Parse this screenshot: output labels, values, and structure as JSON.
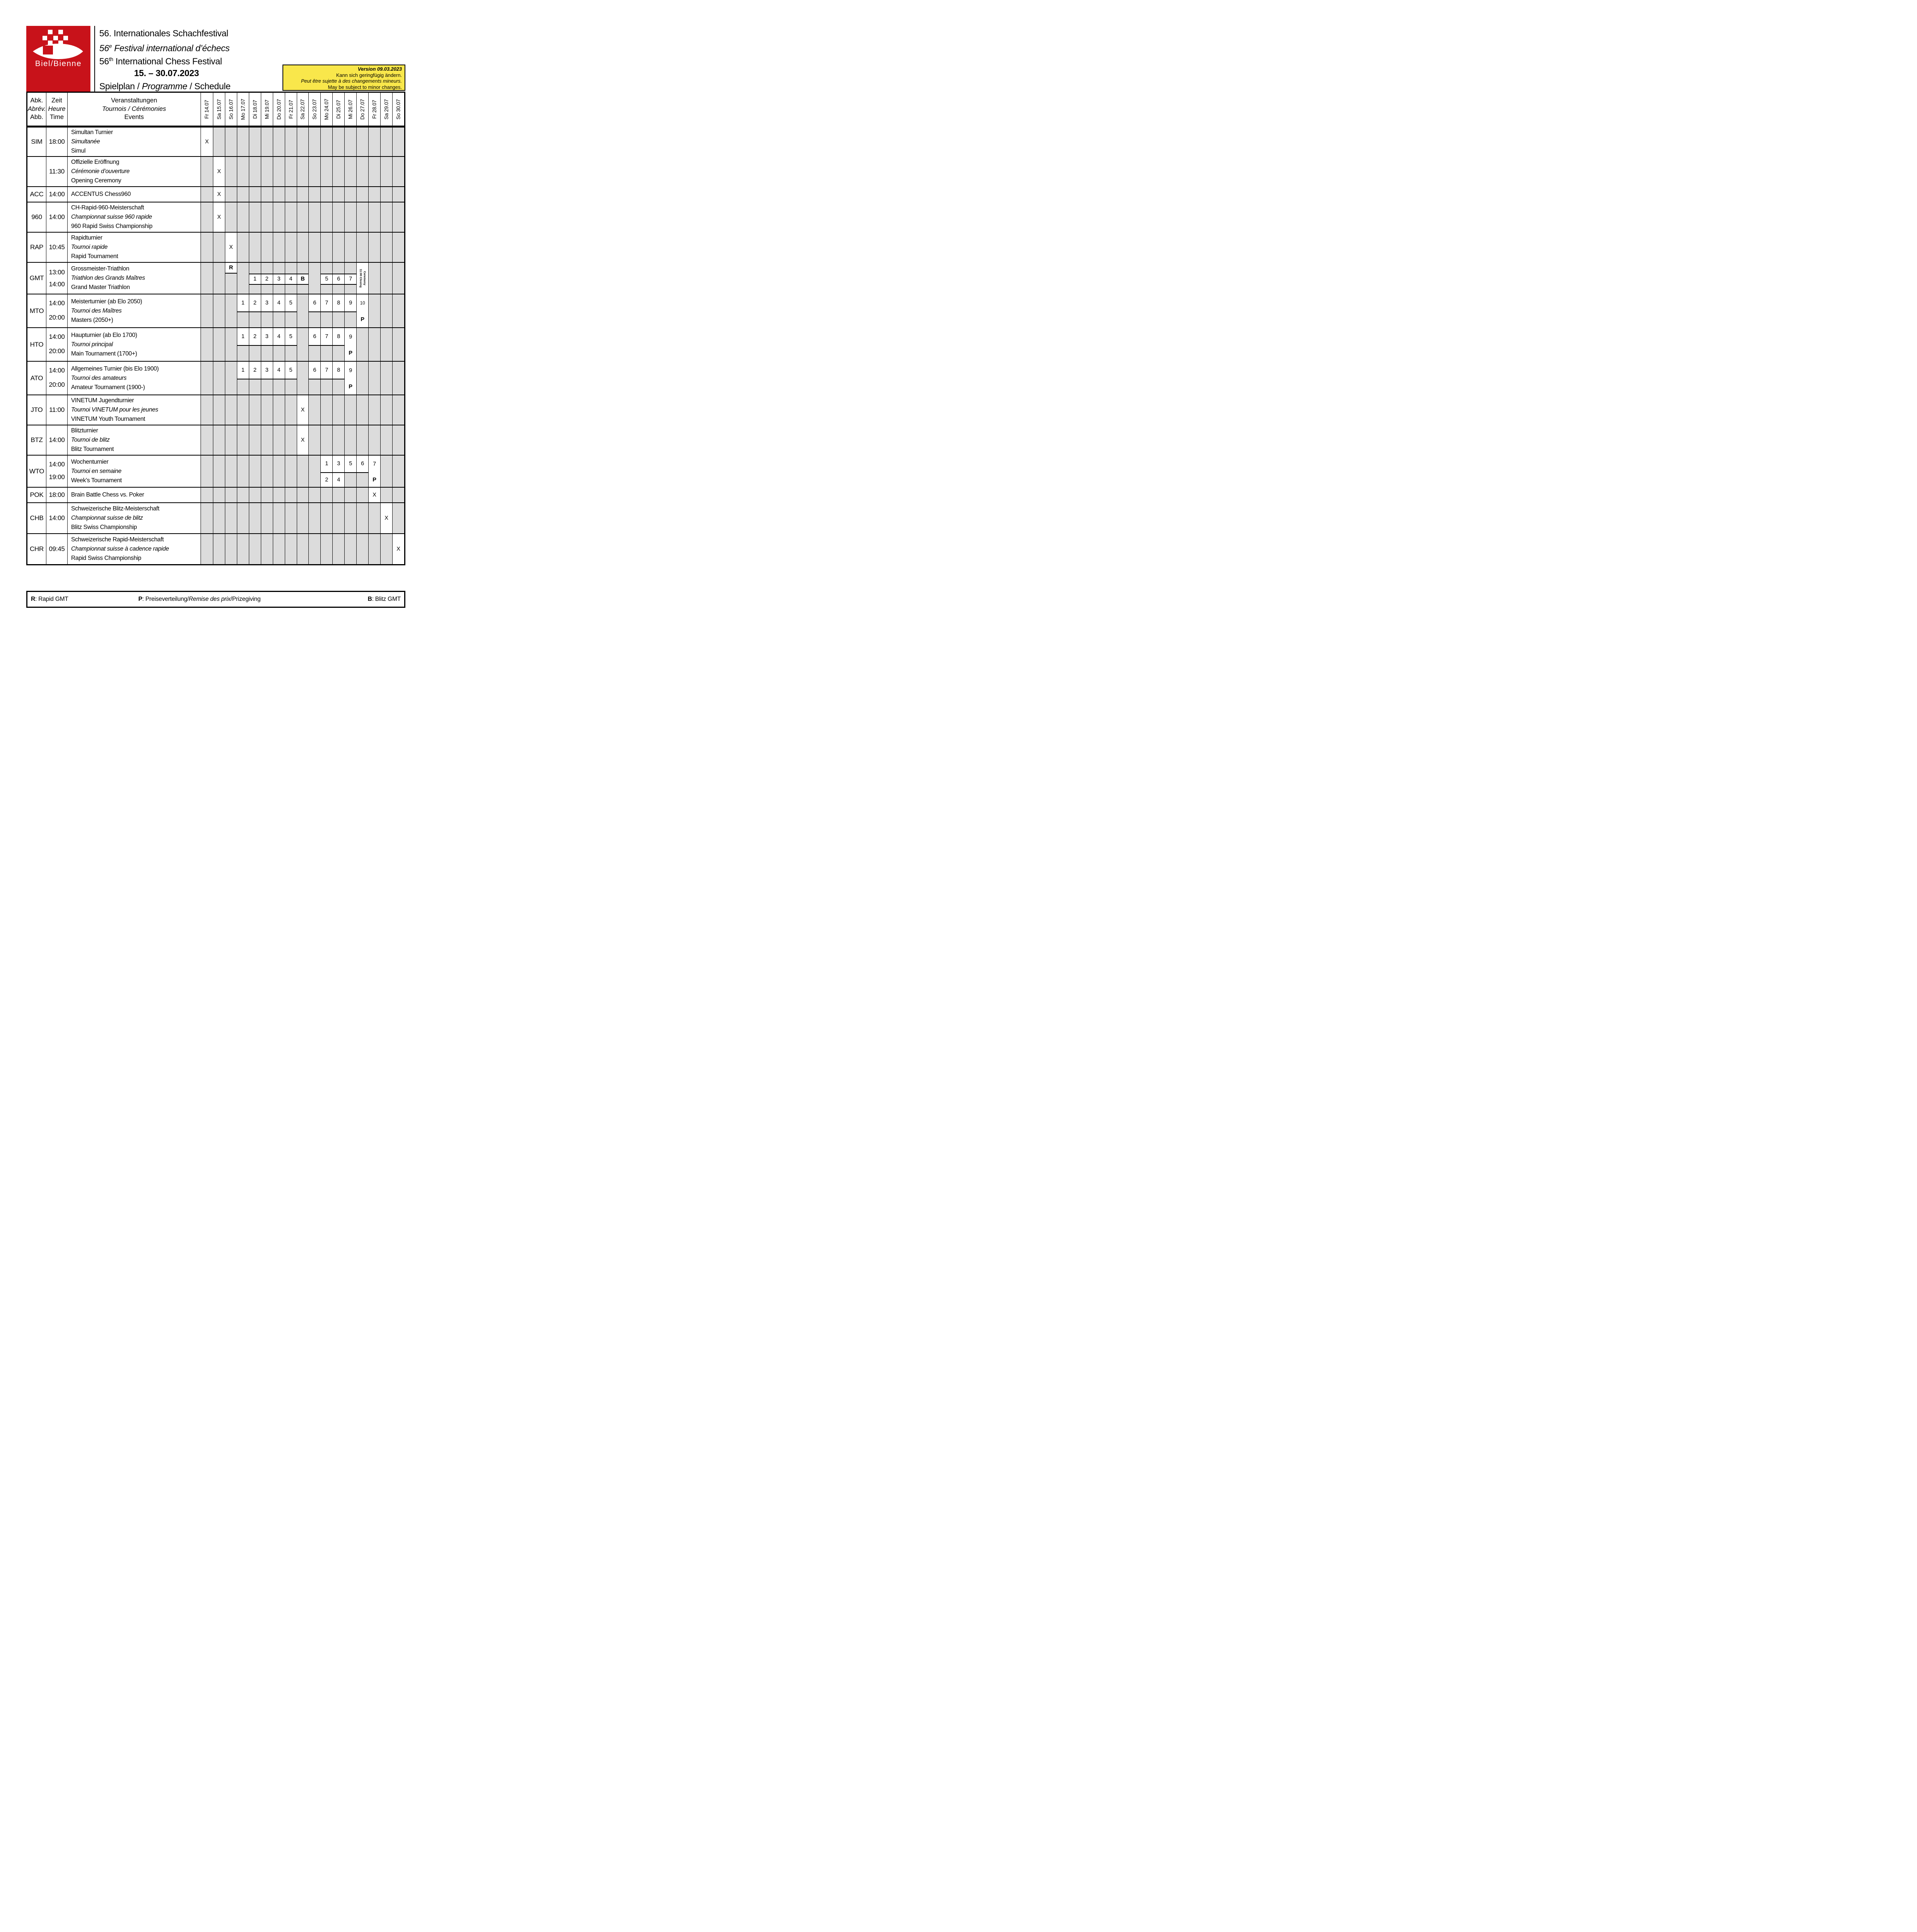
{
  "colors": {
    "red": "#C8121A",
    "yellow": "#F9E74B",
    "gray_cell": "#DCDCDC",
    "line": "#000000"
  },
  "logo": {
    "city": "Biel/Bienne"
  },
  "header": {
    "title_de": "56. Internationales Schachfestival",
    "title_fr_base": "56",
    "title_fr_sup": "e",
    "title_fr_rest": " Festival international d’échecs",
    "title_en_base": "56",
    "title_en_sup": "th",
    "title_en_rest": " International Chess Festival",
    "daterange": "15. – 30.07.2023",
    "plan_de": "Spielplan / ",
    "plan_fr": "Programme",
    "plan_en": " / Schedule",
    "version": {
      "l1": "Version 09.03.2023",
      "l2": "Kann sich geringfügig ändern.",
      "l3": "Peut être sujette à des changements mineurs.",
      "l4": "May be subject to minor changes."
    }
  },
  "table": {
    "corner": {
      "abbr": [
        [
          "Abk.",
          0
        ],
        [
          "Abrév.",
          1
        ],
        [
          "Abb.",
          0
        ]
      ],
      "time": [
        [
          "Zeit",
          0
        ],
        [
          "Heure",
          1
        ],
        [
          "Time",
          0
        ]
      ],
      "events": [
        [
          "Veranstaltungen",
          0
        ],
        [
          "Tournois / Cérémonies",
          1
        ],
        [
          "Events",
          0
        ]
      ]
    },
    "columns": [
      "Fr 14.07",
      "Sa 15.07",
      "So 16.07",
      "Mo 17.07",
      "Di 18.07",
      "Mi 19.07",
      "Do 20.07",
      "Fr 21.07",
      "Sa 22.07",
      "So 23.07",
      "Mo 24.07",
      "Di 25.07",
      "Mi 26.07",
      "Do 27.07",
      "Fr 28.07",
      "Sa 29.07",
      "So 30.07"
    ],
    "rows": [
      {
        "abbr": "SIM",
        "times": [
          "18:00"
        ],
        "tl": "one",
        "h": 76,
        "bands": [
          100
        ],
        "lines": [
          [
            "Simultan Turnier",
            0
          ],
          [
            "Simultanée",
            1
          ],
          [
            "Simul",
            0
          ]
        ],
        "marks": [
          {
            "c": 0,
            "b": 0,
            "t": "X"
          }
        ]
      },
      {
        "abbr": "",
        "times": [
          "11:30"
        ],
        "tl": "one",
        "h": 78,
        "bands": [
          100
        ],
        "lines": [
          [
            "Offizielle Eröffnung",
            0
          ],
          [
            "Cérémonie d’ouverture",
            1
          ],
          [
            "Opening Ceremony",
            0
          ]
        ],
        "marks": [
          {
            "c": 1,
            "b": 0,
            "t": "X"
          }
        ]
      },
      {
        "abbr": "ACC",
        "times": [
          "14:00"
        ],
        "tl": "one",
        "h": 40,
        "bands": [
          100
        ],
        "lines": [
          [
            "ACCENTUS Chess960",
            0
          ]
        ],
        "marks": [
          {
            "c": 1,
            "b": 0,
            "t": "X"
          }
        ]
      },
      {
        "abbr": "960",
        "times": [
          "14:00"
        ],
        "tl": "one",
        "h": 78,
        "bands": [
          100
        ],
        "lines": [
          [
            "CH-Rapid-960-Meisterschaft",
            0
          ],
          [
            "Championnat suisse 960 rapide",
            1
          ],
          [
            "960 Rapid Swiss Championship",
            0
          ]
        ],
        "marks": [
          {
            "c": 1,
            "b": 0,
            "t": "X"
          }
        ]
      },
      {
        "abbr": "RAP",
        "times": [
          "10:45"
        ],
        "tl": "one",
        "h": 78,
        "bands": [
          100
        ],
        "lines": [
          [
            "Rapidturnier",
            0
          ],
          [
            "Tournoi rapide",
            1
          ],
          [
            "Rapid Tournament",
            0
          ]
        ],
        "marks": [
          {
            "c": 2,
            "b": 0,
            "t": "X"
          }
        ]
      },
      {
        "abbr": "GMT",
        "times": [
          "13:00",
          "14:00"
        ],
        "tl": "pair",
        "h": 82,
        "bands": [
          35,
          36,
          29
        ],
        "lines": [
          [
            "Grossmeister-Triathlon",
            0
          ],
          [
            "Triathlon des Grands Maîtres",
            1
          ],
          [
            "Grand Master Triathlon",
            0
          ]
        ],
        "marks": [
          {
            "c": 2,
            "b": 0,
            "t": "R",
            "bold": true
          },
          {
            "c": 4,
            "b": 1,
            "t": "1"
          },
          {
            "c": 5,
            "b": 1,
            "t": "2"
          },
          {
            "c": 6,
            "b": 1,
            "t": "3"
          },
          {
            "c": 7,
            "b": 1,
            "t": "4"
          },
          {
            "c": 8,
            "b": 1,
            "t": "B",
            "bold": true
          },
          {
            "c": 10,
            "b": 1,
            "t": "5"
          },
          {
            "c": 11,
            "b": 1,
            "t": "6"
          },
          {
            "c": 12,
            "b": 1,
            "t": "7"
          }
        ],
        "overlays": [
          {
            "c": 13,
            "type": "rot",
            "lines": [
              "11:00 Closing",
              "Ceremony"
            ]
          }
        ]
      },
      {
        "abbr": "MTO",
        "times": [
          "14:00",
          "20:00"
        ],
        "tl": "split",
        "h": 87,
        "bands": [
          54,
          46
        ],
        "lines": [
          [
            "Meisterturnier (ab Elo 2050)",
            0
          ],
          [
            "Tournoi des Maîtres",
            1
          ],
          [
            "Masters (2050+)",
            0
          ]
        ],
        "marks": [
          {
            "c": 3,
            "b": 0,
            "t": "1"
          },
          {
            "c": 4,
            "b": 0,
            "t": "2"
          },
          {
            "c": 5,
            "b": 0,
            "t": "3"
          },
          {
            "c": 6,
            "b": 0,
            "t": "4"
          },
          {
            "c": 7,
            "b": 0,
            "t": "5"
          },
          {
            "c": 9,
            "b": 0,
            "t": "6"
          },
          {
            "c": 10,
            "b": 0,
            "t": "7"
          },
          {
            "c": 11,
            "b": 0,
            "t": "8"
          },
          {
            "c": 12,
            "b": 0,
            "t": "9"
          }
        ],
        "overlays": [
          {
            "c": 13,
            "type": "stack",
            "cells": [
              {
                "t": "10",
                "small": true
              },
              {
                "t": "P",
                "bold": true
              }
            ]
          }
        ]
      },
      {
        "abbr": "HTO",
        "times": [
          "14:00",
          "20:00"
        ],
        "tl": "split",
        "h": 87,
        "bands": [
          54,
          46
        ],
        "lines": [
          [
            "Haupturnier (ab Elo 1700)",
            0
          ],
          [
            "Tournoi principal",
            1
          ],
          [
            "Main Tournament (1700+)",
            0
          ]
        ],
        "marks": [
          {
            "c": 3,
            "b": 0,
            "t": "1"
          },
          {
            "c": 4,
            "b": 0,
            "t": "2"
          },
          {
            "c": 5,
            "b": 0,
            "t": "3"
          },
          {
            "c": 6,
            "b": 0,
            "t": "4"
          },
          {
            "c": 7,
            "b": 0,
            "t": "5"
          },
          {
            "c": 9,
            "b": 0,
            "t": "6"
          },
          {
            "c": 10,
            "b": 0,
            "t": "7"
          },
          {
            "c": 11,
            "b": 0,
            "t": "8"
          }
        ],
        "overlays": [
          {
            "c": 12,
            "type": "stack",
            "cells": [
              {
                "t": "9"
              },
              {
                "t": "P",
                "bold": true
              }
            ]
          }
        ]
      },
      {
        "abbr": "ATO",
        "times": [
          "14:00",
          "20:00"
        ],
        "tl": "split",
        "h": 87,
        "bands": [
          54,
          46
        ],
        "lines": [
          [
            "Allgemeines Turnier (bis Elo 1900)",
            0
          ],
          [
            "Tournoi des amateurs",
            1
          ],
          [
            "Amateur Tournament (1900-)",
            0
          ]
        ],
        "marks": [
          {
            "c": 3,
            "b": 0,
            "t": "1"
          },
          {
            "c": 4,
            "b": 0,
            "t": "2"
          },
          {
            "c": 5,
            "b": 0,
            "t": "3"
          },
          {
            "c": 6,
            "b": 0,
            "t": "4"
          },
          {
            "c": 7,
            "b": 0,
            "t": "5"
          },
          {
            "c": 9,
            "b": 0,
            "t": "6"
          },
          {
            "c": 10,
            "b": 0,
            "t": "7"
          },
          {
            "c": 11,
            "b": 0,
            "t": "8"
          }
        ],
        "overlays": [
          {
            "c": 12,
            "type": "stack",
            "cells": [
              {
                "t": "9"
              },
              {
                "t": "P",
                "bold": true
              }
            ]
          }
        ]
      },
      {
        "abbr": "JTO",
        "times": [
          "11:00"
        ],
        "tl": "one",
        "h": 78,
        "bands": [
          100
        ],
        "lines": [
          [
            "VINETUM Jugendturnier",
            0
          ],
          [
            "Tournoi VINETUM pour les jeunes",
            1
          ],
          [
            "VINETUM Youth Tournament",
            0
          ]
        ],
        "marks": [
          {
            "c": 8,
            "b": 0,
            "t": "X"
          }
        ]
      },
      {
        "abbr": "BTZ",
        "times": [
          "14:00"
        ],
        "tl": "one",
        "h": 78,
        "bands": [
          100
        ],
        "lines": [
          [
            "Blitzturnier",
            0
          ],
          [
            "Tournoi de blitz",
            1
          ],
          [
            "Blitz Tournament",
            0
          ]
        ],
        "marks": [
          {
            "c": 8,
            "b": 0,
            "t": "X"
          }
        ]
      },
      {
        "abbr": "WTO",
        "times": [
          "14:00",
          "19:00"
        ],
        "tl": "split",
        "h": 83,
        "bands": [
          55,
          45
        ],
        "lines": [
          [
            "Wochenturnier",
            0
          ],
          [
            "Tournoi en semaine",
            1
          ],
          [
            "Week’s Tournament",
            0
          ]
        ],
        "marks": [
          {
            "c": 10,
            "b": 0,
            "t": "1"
          },
          {
            "c": 11,
            "b": 0,
            "t": "3"
          },
          {
            "c": 12,
            "b": 0,
            "t": "5"
          },
          {
            "c": 13,
            "b": 0,
            "t": "6"
          },
          {
            "c": 10,
            "b": 1,
            "t": "2"
          },
          {
            "c": 11,
            "b": 1,
            "t": "4"
          }
        ],
        "overlays": [
          {
            "c": 14,
            "type": "stack",
            "cells": [
              {
                "t": "7"
              },
              {
                "t": "P",
                "bold": true
              }
            ]
          }
        ]
      },
      {
        "abbr": "POK",
        "times": [
          "18:00"
        ],
        "tl": "one",
        "h": 40,
        "bands": [
          100
        ],
        "lines": [
          [
            "Brain Battle Chess vs. Poker",
            0
          ]
        ],
        "marks": [
          {
            "c": 14,
            "b": 0,
            "t": "X"
          }
        ]
      },
      {
        "abbr": "CHB",
        "times": [
          "14:00"
        ],
        "tl": "one",
        "h": 80,
        "bands": [
          100
        ],
        "lines": [
          [
            "Schweizerische Blitz-Meisterschaft",
            0
          ],
          [
            "Championnat suisse de blitz",
            1
          ],
          [
            "Blitz Swiss Championship",
            0
          ]
        ],
        "marks": [
          {
            "c": 15,
            "b": 0,
            "t": "X"
          }
        ]
      },
      {
        "abbr": "CHR",
        "times": [
          "09:45"
        ],
        "tl": "one",
        "h": 80,
        "bands": [
          100
        ],
        "lines": [
          [
            "Schweizerische Rapid-Meisterschaft",
            0
          ],
          [
            "Championnat suisse à cadence rapide",
            1
          ],
          [
            "Rapid Swiss Championship",
            0
          ]
        ],
        "marks": [
          {
            "c": 16,
            "b": 0,
            "t": "X"
          }
        ]
      }
    ]
  },
  "legend": {
    "r_key": "R",
    "r_rest": ": Rapid GMT",
    "p_key": "P",
    "p_pre": ": Preiseverteilung/",
    "p_italic": "Remise des prix",
    "p_post": "/Prizegiving",
    "b_key": "B",
    "b_rest": ": Blitz GMT"
  }
}
